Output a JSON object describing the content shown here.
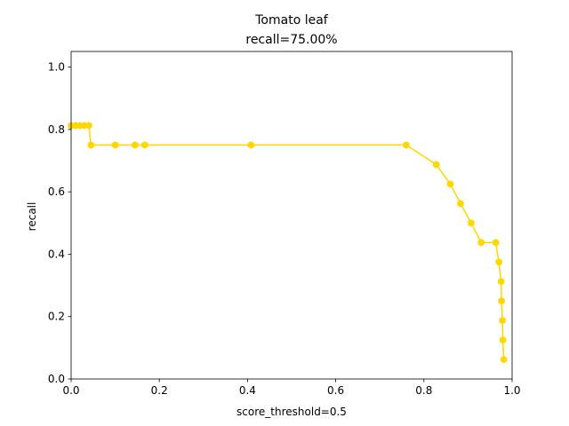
{
  "chart_data": {
    "type": "line",
    "title": "Tomato leaf",
    "subtitle": "recall=75.00%",
    "xlabel": "score_threshold=0.5",
    "ylabel": "recall",
    "xlim": [
      0.0,
      1.0
    ],
    "ylim": [
      0.0,
      1.05
    ],
    "xticks": [
      "0.0",
      "0.2",
      "0.4",
      "0.6",
      "0.8",
      "1.0"
    ],
    "yticks": [
      "0.0",
      "0.2",
      "0.4",
      "0.6",
      "0.8",
      "1.0"
    ],
    "grid": false,
    "legend": "none",
    "series": [
      {
        "color": "#ffd700",
        "x": [
          0.0,
          0.01,
          0.02,
          0.03,
          0.04,
          0.045,
          0.1,
          0.145,
          0.167,
          0.408,
          0.76,
          0.828,
          0.86,
          0.883,
          0.907,
          0.93,
          0.963,
          0.97,
          0.975,
          0.976,
          0.978,
          0.979,
          0.981
        ],
        "y": [
          0.8125,
          0.8125,
          0.8125,
          0.8125,
          0.8125,
          0.75,
          0.75,
          0.75,
          0.75,
          0.75,
          0.75,
          0.6875,
          0.625,
          0.5625,
          0.5,
          0.4375,
          0.4375,
          0.375,
          0.3125,
          0.25,
          0.1875,
          0.125,
          0.0625
        ]
      }
    ]
  }
}
